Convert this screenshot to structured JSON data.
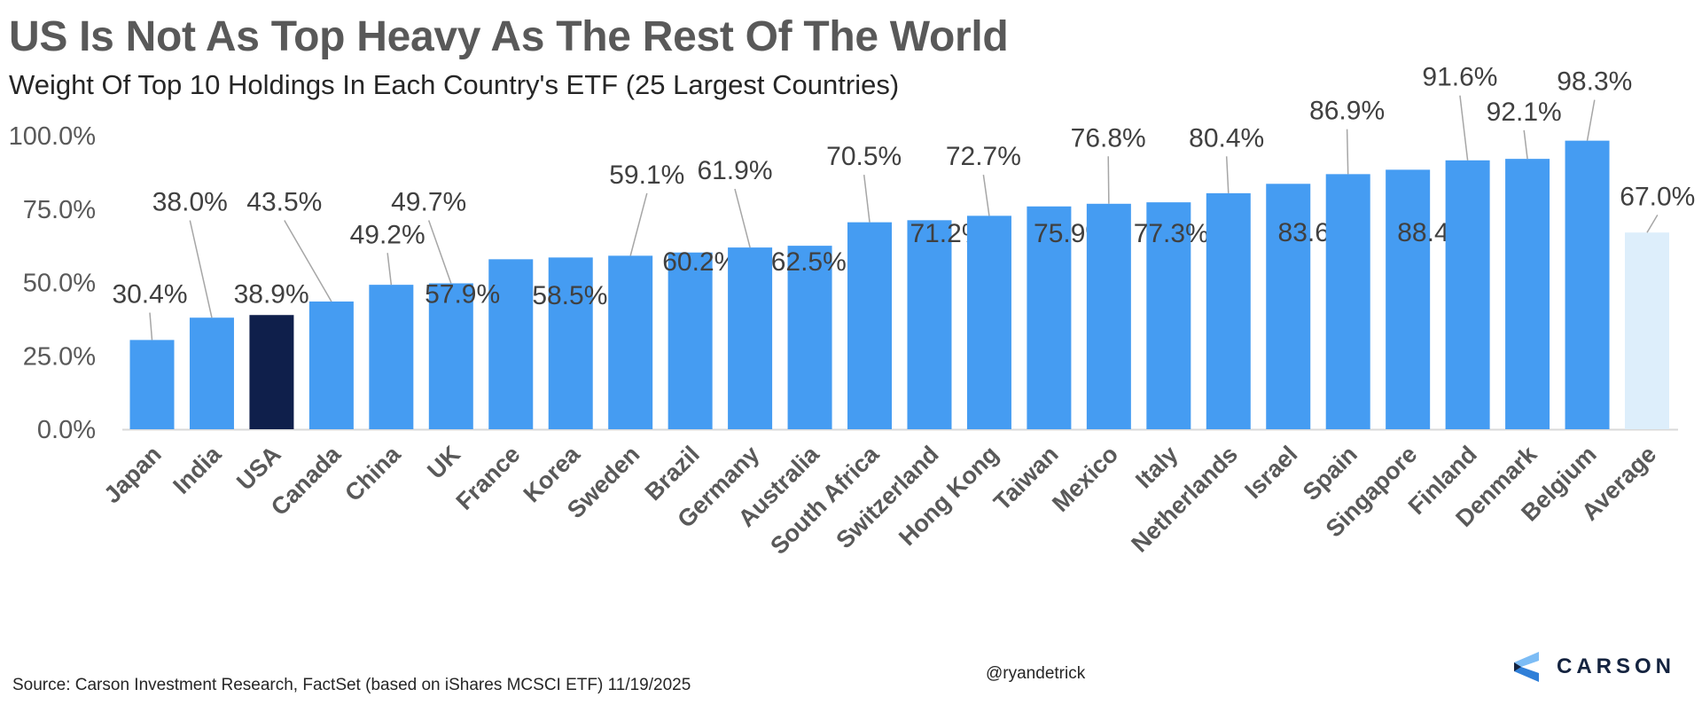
{
  "title": "US Is Not As Top Heavy As The Rest Of The World",
  "subtitle": "Weight Of Top 10 Holdings In Each Country's ETF (25 Largest Countries)",
  "source": "Source: Carson Investment Research, FactSet (based on iShares MCSCI ETF) 11/19/2025",
  "handle": "@ryandetrick",
  "logo": {
    "text": "CARSON"
  },
  "colors": {
    "bar": "#459cf2",
    "highlight": "#0f1f4b",
    "average": "#ddeefb",
    "text": "#595959",
    "axis": "#d9d9d9"
  },
  "chart_data": {
    "type": "bar",
    "title": "US Is Not As Top Heavy As The Rest Of The World",
    "subtitle": "Weight Of Top 10 Holdings In Each Country's ETF (25 Largest Countries)",
    "categories": [
      "Japan",
      "India",
      "USA",
      "Canada",
      "China",
      "UK",
      "France",
      "Korea",
      "Sweden",
      "Brazil",
      "Germany",
      "Australia",
      "South Africa",
      "Switzerland",
      "Hong Kong",
      "Taiwan",
      "Mexico",
      "Italy",
      "Netherlands",
      "Israel",
      "Spain",
      "Singapore",
      "Finland",
      "Denmark",
      "Belgium",
      "Average"
    ],
    "values": [
      30.4,
      38.0,
      38.9,
      43.5,
      49.2,
      49.7,
      57.9,
      58.5,
      59.1,
      60.2,
      61.9,
      62.5,
      70.5,
      71.2,
      72.7,
      75.9,
      76.8,
      77.3,
      80.4,
      83.6,
      86.9,
      88.4,
      91.6,
      92.1,
      98.3,
      67.0
    ],
    "data_labels": [
      "30.4%",
      "38.0%",
      "38.9%",
      "43.5%",
      "49.2%",
      "49.7%",
      "57.9%",
      "58.5%",
      "59.1%",
      "60.2%",
      "61.9%",
      "62.5%",
      "70.5%",
      "71.2%",
      "72.7%",
      "75.9%",
      "76.8%",
      "77.3%",
      "80.4%",
      "83.6%",
      "86.9%",
      "88.4%",
      "91.6%",
      "92.1%",
      "98.3%",
      "67.0%"
    ],
    "highlight": "USA",
    "yticks": [
      "0.0%",
      "25.0%",
      "50.0%",
      "75.0%",
      "100.0%"
    ],
    "ylim": [
      0,
      100
    ],
    "xlabel": "",
    "ylabel": "",
    "grid": false,
    "legend": "none"
  }
}
